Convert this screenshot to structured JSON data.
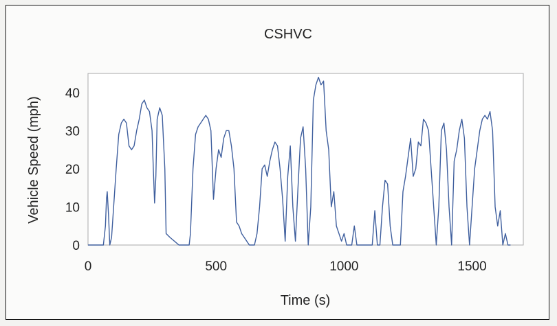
{
  "chart_data": {
    "type": "line",
    "title": "CSHVC",
    "xlabel": "Time (s)",
    "ylabel": "Vehicle Speed (mph)",
    "xlim": [
      0,
      1700
    ],
    "ylim": [
      0,
      45
    ],
    "x_ticks": [
      0,
      500,
      1000,
      1500
    ],
    "y_ticks": [
      0,
      10,
      20,
      30,
      40
    ],
    "grid": false,
    "legend": "none",
    "series_color": "#3f5f9e",
    "series": [
      {
        "x": [
          0,
          60,
          68,
          72,
          75,
          80,
          85,
          92,
          100,
          110,
          120,
          130,
          140,
          150,
          160,
          170,
          180,
          190,
          200,
          210,
          220,
          230,
          240,
          250,
          255,
          260,
          265,
          270,
          280,
          290,
          300,
          305,
          320,
          355,
          370,
          395,
          400,
          410,
          420,
          430,
          440,
          450,
          460,
          470,
          480,
          490,
          500,
          510,
          520,
          530,
          540,
          550,
          560,
          570,
          580,
          590,
          600,
          610,
          620,
          630,
          640,
          650,
          660,
          670,
          680,
          690,
          700,
          710,
          720,
          730,
          740,
          750,
          760,
          770,
          780,
          790,
          800,
          810,
          820,
          830,
          840,
          850,
          860,
          870,
          880,
          890,
          900,
          910,
          920,
          930,
          940,
          950,
          960,
          970,
          980,
          990,
          1000,
          1010,
          1020,
          1030,
          1040,
          1050,
          1060,
          1100,
          1110,
          1120,
          1130,
          1140,
          1150,
          1160,
          1170,
          1180,
          1190,
          1200,
          1210,
          1220,
          1230,
          1240,
          1250,
          1260,
          1270,
          1280,
          1290,
          1300,
          1310,
          1320,
          1330,
          1340,
          1350,
          1360,
          1370,
          1380,
          1390,
          1400,
          1410,
          1420,
          1430,
          1440,
          1450,
          1460,
          1470,
          1480,
          1490,
          1500,
          1510,
          1520,
          1530,
          1540,
          1550,
          1560,
          1570,
          1580,
          1590,
          1600,
          1610,
          1620,
          1630,
          1640,
          1650
        ],
        "y": [
          0,
          0,
          5,
          12,
          14,
          8,
          0,
          2,
          10,
          20,
          29,
          32,
          33,
          32,
          26,
          25,
          26,
          30,
          33,
          37,
          38,
          36,
          35,
          30,
          20,
          11,
          18,
          33,
          36,
          34,
          20,
          3,
          2,
          0,
          0,
          0,
          3,
          20,
          29,
          31,
          32,
          33,
          34,
          33,
          30,
          12,
          20,
          25,
          23,
          28,
          30,
          30,
          26,
          20,
          6,
          5,
          3,
          2,
          1,
          0,
          0,
          0,
          3,
          10,
          20,
          21,
          18,
          22,
          25,
          27,
          26,
          20,
          12,
          1,
          18,
          26,
          10,
          1,
          15,
          28,
          31,
          20,
          0,
          10,
          38,
          42,
          44,
          42,
          43,
          30,
          25,
          10,
          14,
          5,
          3,
          1,
          3,
          0,
          0,
          0,
          5,
          0,
          0,
          0,
          0,
          9,
          0,
          0,
          10,
          17,
          16,
          5,
          0,
          0,
          0,
          0,
          14,
          18,
          23,
          28,
          18,
          20,
          27,
          26,
          33,
          32,
          30,
          20,
          10,
          0,
          10,
          30,
          32,
          25,
          10,
          0,
          22,
          25,
          30,
          33,
          28,
          10,
          0,
          10,
          20,
          25,
          30,
          33,
          34,
          33,
          35,
          30,
          10,
          5,
          9,
          0,
          3,
          0,
          0
        ]
      }
    ]
  }
}
